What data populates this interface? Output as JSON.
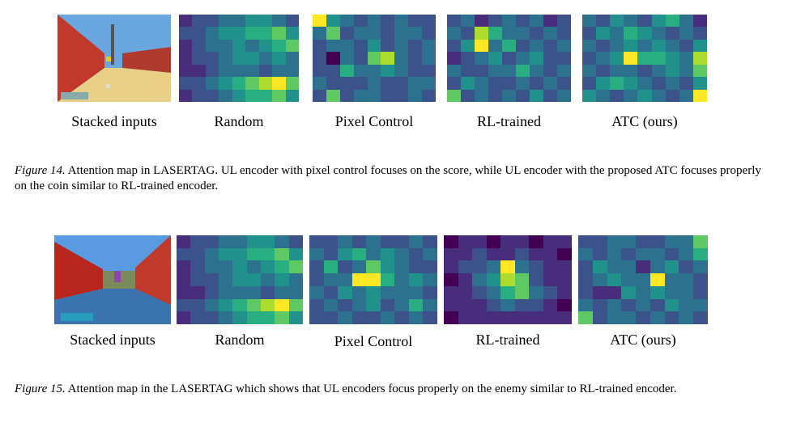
{
  "figure14": {
    "labels": [
      "Stacked inputs",
      "Random",
      "Pixel Control",
      "RL-trained",
      "ATC (ours)"
    ],
    "caption_label": "Figure 14.",
    "caption_text": " Attention map in LASERTAG. UL encoder with pixel control focuses on the score, while UL encoder with the proposed ATC focuses properly on the coin similar to RL-trained encoder.",
    "colors": {
      "wall": "#c0392b",
      "floor": "#e6c878",
      "sky": "#5b9bd5"
    }
  },
  "figure15": {
    "labels": [
      "Stacked inputs",
      "Random",
      "Pixel Control",
      "RL-trained",
      "ATC (ours)"
    ],
    "caption_label": "Figure 15.",
    "caption_text": " Attention map in the LASERTAG which shows that UL encoders focus properly on the enemy similar to RL-trained encoder.",
    "colors": {
      "wall": "#b8261d",
      "floor": "#3b6fa8",
      "sky": "#4a90d9"
    }
  },
  "heatmap_scale": [
    "#440154",
    "#472d7b",
    "#3b528b",
    "#2c728e",
    "#21918c",
    "#28ae80",
    "#5ec962",
    "#addc30",
    "#fde725"
  ],
  "heatmaps": {
    "f14_random": [
      [
        1,
        2,
        2,
        3,
        3,
        4,
        4,
        3,
        2
      ],
      [
        2,
        2,
        3,
        4,
        4,
        5,
        5,
        6,
        4
      ],
      [
        1,
        2,
        3,
        3,
        4,
        3,
        4,
        5,
        6
      ],
      [
        1,
        2,
        2,
        3,
        4,
        4,
        3,
        4,
        3
      ],
      [
        1,
        1,
        2,
        3,
        3,
        3,
        2,
        3,
        3
      ],
      [
        2,
        2,
        3,
        4,
        5,
        6,
        7,
        8,
        6
      ],
      [
        1,
        2,
        2,
        3,
        4,
        5,
        5,
        6,
        4
      ]
    ],
    "f14_pixel": [
      [
        8,
        4,
        3,
        2,
        3,
        2,
        3,
        2,
        2
      ],
      [
        3,
        6,
        2,
        3,
        3,
        2,
        3,
        3,
        2
      ],
      [
        2,
        3,
        3,
        2,
        4,
        2,
        3,
        2,
        3
      ],
      [
        2,
        0,
        3,
        2,
        6,
        7,
        3,
        2,
        3
      ],
      [
        2,
        2,
        5,
        3,
        3,
        4,
        3,
        2,
        2
      ],
      [
        3,
        2,
        2,
        2,
        3,
        2,
        2,
        3,
        3
      ],
      [
        2,
        6,
        2,
        3,
        3,
        2,
        2,
        3,
        2
      ]
    ],
    "f14_rl": [
      [
        2,
        3,
        1,
        2,
        3,
        2,
        3,
        1,
        2
      ],
      [
        3,
        2,
        7,
        5,
        3,
        3,
        2,
        3,
        2
      ],
      [
        2,
        4,
        8,
        3,
        5,
        2,
        3,
        2,
        3
      ],
      [
        1,
        2,
        3,
        4,
        2,
        3,
        4,
        2,
        2
      ],
      [
        3,
        2,
        2,
        3,
        3,
        5,
        3,
        2,
        3
      ],
      [
        2,
        4,
        3,
        2,
        2,
        3,
        2,
        3,
        2
      ],
      [
        6,
        2,
        3,
        2,
        3,
        2,
        4,
        2,
        3
      ]
    ],
    "f14_atc": [
      [
        3,
        2,
        4,
        3,
        2,
        4,
        5,
        3,
        1
      ],
      [
        2,
        4,
        3,
        5,
        4,
        3,
        2,
        3,
        2
      ],
      [
        3,
        2,
        3,
        4,
        3,
        4,
        3,
        2,
        4
      ],
      [
        2,
        3,
        4,
        8,
        5,
        5,
        4,
        3,
        7
      ],
      [
        3,
        2,
        3,
        3,
        2,
        3,
        4,
        3,
        6
      ],
      [
        2,
        4,
        5,
        4,
        3,
        2,
        3,
        2,
        4
      ],
      [
        4,
        3,
        2,
        3,
        4,
        3,
        2,
        3,
        8
      ]
    ],
    "f15_random": [
      [
        1,
        2,
        2,
        3,
        3,
        4,
        4,
        3,
        2
      ],
      [
        2,
        2,
        3,
        4,
        4,
        5,
        5,
        6,
        4
      ],
      [
        1,
        2,
        3,
        3,
        4,
        3,
        4,
        5,
        6
      ],
      [
        1,
        2,
        2,
        3,
        4,
        4,
        3,
        4,
        3
      ],
      [
        1,
        1,
        2,
        3,
        3,
        3,
        2,
        3,
        3
      ],
      [
        2,
        2,
        3,
        4,
        5,
        6,
        7,
        8,
        6
      ],
      [
        1,
        2,
        2,
        3,
        4,
        5,
        5,
        6,
        4
      ]
    ],
    "f15_pixel": [
      [
        2,
        2,
        3,
        2,
        3,
        2,
        2,
        3,
        2
      ],
      [
        3,
        2,
        4,
        5,
        3,
        4,
        3,
        2,
        3
      ],
      [
        2,
        5,
        2,
        3,
        6,
        4,
        3,
        2,
        2
      ],
      [
        2,
        3,
        3,
        8,
        8,
        5,
        3,
        4,
        3
      ],
      [
        3,
        2,
        4,
        3,
        4,
        3,
        3,
        3,
        2
      ],
      [
        2,
        3,
        2,
        3,
        4,
        2,
        3,
        5,
        3
      ],
      [
        2,
        2,
        3,
        2,
        2,
        3,
        2,
        3,
        2
      ]
    ],
    "f15_rl": [
      [
        0,
        1,
        1,
        0,
        1,
        1,
        0,
        1,
        1
      ],
      [
        1,
        1,
        2,
        1,
        1,
        2,
        1,
        1,
        0
      ],
      [
        1,
        2,
        2,
        3,
        8,
        3,
        2,
        1,
        1
      ],
      [
        0,
        1,
        3,
        4,
        7,
        6,
        2,
        1,
        1
      ],
      [
        1,
        1,
        2,
        3,
        5,
        6,
        3,
        2,
        1
      ],
      [
        1,
        1,
        1,
        2,
        3,
        2,
        2,
        1,
        0
      ],
      [
        0,
        1,
        1,
        1,
        1,
        1,
        1,
        1,
        1
      ]
    ],
    "f15_atc": [
      [
        2,
        2,
        3,
        3,
        2,
        2,
        3,
        3,
        6
      ],
      [
        3,
        2,
        3,
        2,
        3,
        3,
        2,
        3,
        5
      ],
      [
        2,
        4,
        3,
        3,
        1,
        3,
        4,
        2,
        3
      ],
      [
        2,
        3,
        4,
        3,
        3,
        8,
        3,
        3,
        2
      ],
      [
        2,
        1,
        1,
        4,
        3,
        4,
        3,
        3,
        2
      ],
      [
        3,
        2,
        3,
        2,
        3,
        2,
        4,
        3,
        3
      ],
      [
        6,
        2,
        3,
        3,
        2,
        3,
        2,
        3,
        2
      ]
    ]
  }
}
